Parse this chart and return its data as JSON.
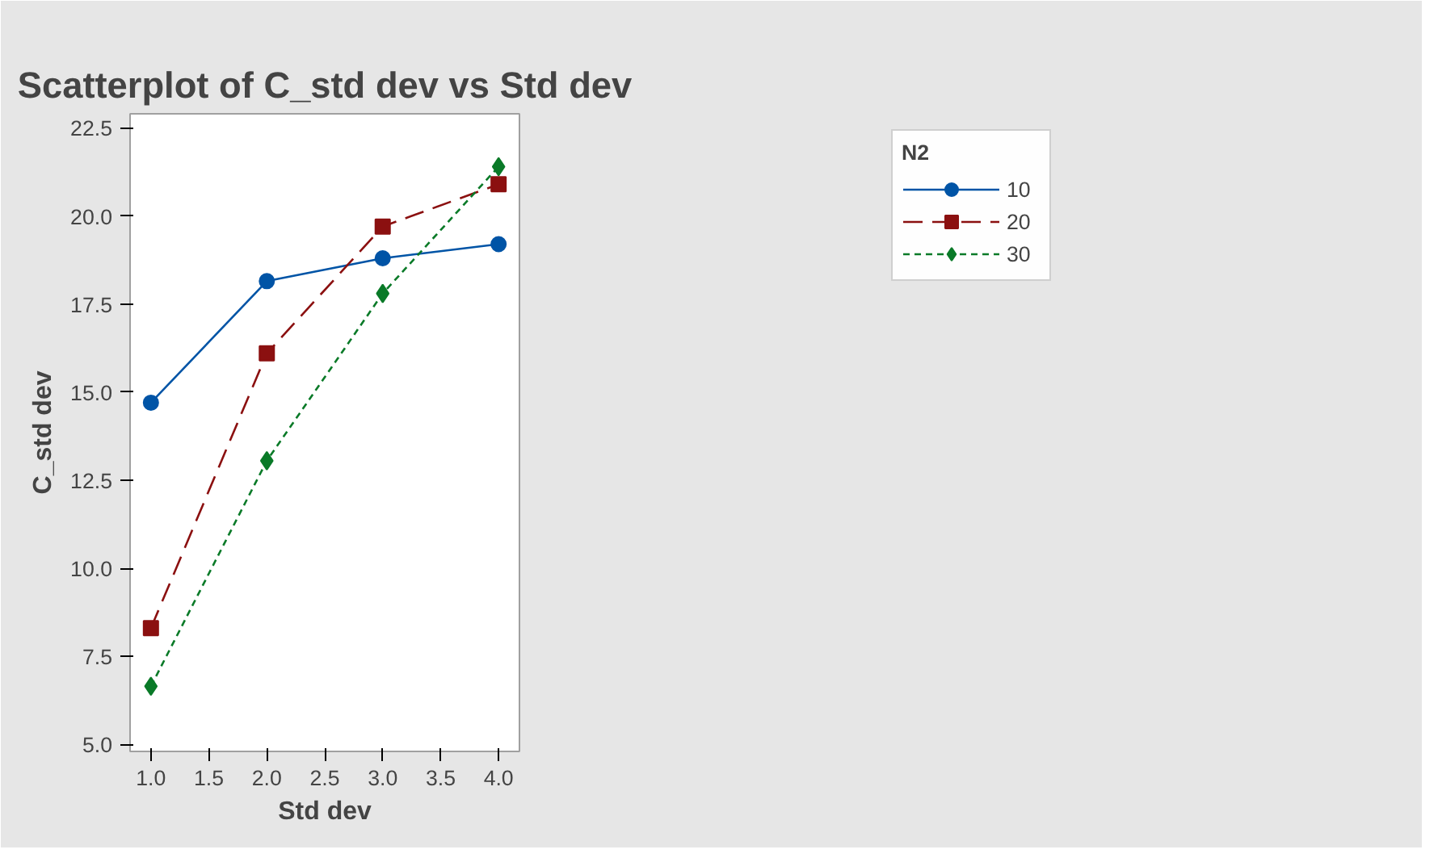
{
  "chart_data": {
    "type": "line",
    "title": "Scatterplot of C_std dev vs Std dev",
    "xlabel": "Std dev",
    "ylabel": "C_std dev",
    "legend_title": "N2",
    "x": [
      1,
      2,
      3,
      4
    ],
    "series": [
      {
        "name": "10",
        "color": "#0054a6",
        "values": [
          14.7,
          18.15,
          18.8,
          19.2
        ],
        "marker": "circle",
        "line_style": "solid"
      },
      {
        "name": "20",
        "color": "#8b1010",
        "values": [
          8.3,
          16.1,
          19.7,
          20.9
        ],
        "marker": "square",
        "line_style": "dashed"
      },
      {
        "name": "30",
        "color": "#0a7a28",
        "values": [
          6.65,
          13.05,
          17.8,
          21.4
        ],
        "marker": "diamond",
        "line_style": "dotted"
      }
    ],
    "xlim": [
      0.82,
      4.18
    ],
    "ylim": [
      4.8,
      22.9
    ],
    "xticks": [
      {
        "value": 1,
        "label": "1.0"
      },
      {
        "value": 1.5,
        "label": "1.5"
      },
      {
        "value": 2,
        "label": "2.0"
      },
      {
        "value": 2.5,
        "label": "2.5"
      },
      {
        "value": 3,
        "label": "3.0"
      },
      {
        "value": 3.5,
        "label": "3.5"
      },
      {
        "value": 4,
        "label": "4.0"
      }
    ],
    "yticks": [
      {
        "value": 5,
        "label": "5.0"
      },
      {
        "value": 7.5,
        "label": "7.5"
      },
      {
        "value": 10,
        "label": "10.0"
      },
      {
        "value": 12.5,
        "label": "12.5"
      },
      {
        "value": 15,
        "label": "15.0"
      },
      {
        "value": 17.5,
        "label": "17.5"
      },
      {
        "value": 20,
        "label": "20.0"
      },
      {
        "value": 22.5,
        "label": "22.5"
      }
    ],
    "grid": false,
    "legend": "top right"
  }
}
